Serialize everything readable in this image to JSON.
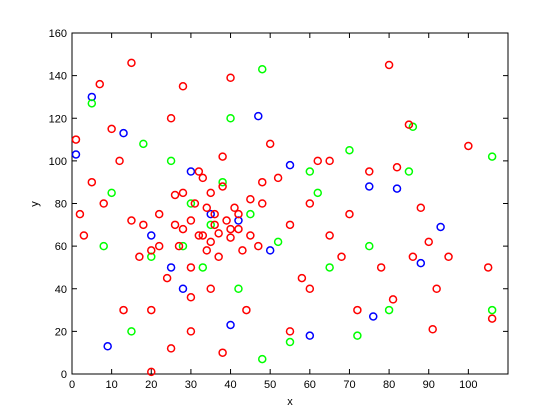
{
  "chart_data": {
    "type": "scatter",
    "x_label": "x",
    "y_label": "y",
    "xlim": [
      0,
      110
    ],
    "ylim": [
      0,
      160
    ],
    "xticks": [
      0,
      10,
      20,
      30,
      40,
      50,
      60,
      70,
      80,
      90,
      100
    ],
    "yticks": [
      0,
      20,
      40,
      60,
      80,
      100,
      120,
      140,
      160
    ],
    "grid": false,
    "series": [
      {
        "color": "#0000ff",
        "x": [
          5,
          1,
          13,
          47,
          35,
          28,
          42,
          55,
          75,
          82,
          88,
          93,
          30,
          40,
          20,
          9,
          60,
          50,
          25,
          76
        ],
        "values": [
          130,
          103,
          113,
          121,
          75,
          40,
          72,
          98,
          88,
          87,
          52,
          69,
          95,
          23,
          65,
          13,
          18,
          58,
          50,
          27
        ]
      },
      {
        "color": "#00ff00",
        "x": [
          5,
          48,
          106,
          106,
          35,
          28,
          45,
          60,
          20,
          15,
          70,
          85,
          80,
          52,
          38,
          25,
          10,
          42,
          55,
          65,
          72,
          30,
          33,
          48,
          75,
          18,
          62,
          40,
          8,
          86
        ],
        "values": [
          127,
          143,
          102,
          30,
          70,
          60,
          75,
          95,
          55,
          20,
          105,
          95,
          30,
          62,
          90,
          100,
          85,
          40,
          15,
          50,
          18,
          80,
          50,
          7,
          60,
          108,
          85,
          120,
          60,
          116
        ]
      },
      {
        "color": "#ff0000",
        "x": [
          3,
          8,
          15,
          18,
          20,
          22,
          25,
          27,
          28,
          30,
          30,
          32,
          33,
          34,
          35,
          35,
          36,
          37,
          38,
          40,
          40,
          42,
          44,
          45,
          47,
          50,
          52,
          55,
          58,
          60,
          62,
          65,
          68,
          70,
          72,
          75,
          78,
          80,
          82,
          85,
          88,
          90,
          92,
          95,
          100,
          105,
          106,
          12,
          10,
          5,
          2,
          1,
          25,
          28,
          30,
          33,
          38,
          42,
          45,
          48,
          20,
          22,
          24,
          26,
          17,
          15,
          13,
          55,
          60,
          65,
          38,
          40,
          81,
          86,
          91,
          48,
          30,
          35,
          20,
          7,
          32,
          36,
          28,
          34,
          39,
          43,
          26,
          31,
          37,
          41
        ],
        "values": [
          65,
          80,
          146,
          70,
          58,
          75,
          120,
          60,
          85,
          72,
          50,
          95,
          65,
          78,
          62,
          40,
          70,
          55,
          88,
          68,
          139,
          75,
          30,
          82,
          60,
          108,
          92,
          70,
          45,
          80,
          100,
          65,
          55,
          75,
          30,
          95,
          50,
          145,
          97,
          117,
          78,
          62,
          40,
          55,
          107,
          50,
          26,
          100,
          115,
          90,
          75,
          110,
          12,
          135,
          36,
          92,
          102,
          68,
          65,
          90,
          30,
          60,
          45,
          84,
          55,
          72,
          30,
          20,
          40,
          100,
          10,
          64,
          35,
          55,
          21,
          80,
          20,
          85,
          1,
          136,
          65,
          75,
          68,
          58,
          72,
          58,
          70,
          80,
          66,
          78
        ]
      }
    ]
  }
}
